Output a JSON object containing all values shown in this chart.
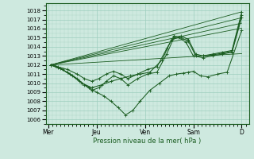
{
  "xlabel": "Pression niveau de la mer( hPa )",
  "xtick_labels": [
    "Mer",
    "Jeu",
    "Ven",
    "Sam",
    "D"
  ],
  "xtick_pos": [
    0,
    1,
    2,
    3,
    4
  ],
  "ylim": [
    1005.5,
    1018.8
  ],
  "ytick_vals": [
    1006,
    1007,
    1008,
    1009,
    1010,
    1011,
    1012,
    1013,
    1014,
    1015,
    1016,
    1017,
    1018
  ],
  "bg_color": "#cee9df",
  "grid_color": "#9ecfbe",
  "line_color": "#1a5c20",
  "straight_lines": [
    [
      0.05,
      1012.0,
      4.0,
      1017.85
    ],
    [
      0.05,
      1012.0,
      4.0,
      1017.2
    ],
    [
      0.05,
      1012.0,
      4.0,
      1016.6
    ],
    [
      0.05,
      1012.0,
      4.0,
      1016.05
    ],
    [
      0.05,
      1012.0,
      4.0,
      1013.25
    ]
  ],
  "curve1_x": [
    0.05,
    0.25,
    0.45,
    0.65,
    0.85,
    1.0,
    1.15,
    1.3,
    1.45,
    1.6,
    1.75,
    1.9,
    2.1,
    2.3,
    2.5,
    2.65,
    2.8,
    2.9,
    3.0,
    3.15,
    3.3,
    3.5,
    3.7,
    4.0
  ],
  "curve1_y": [
    1012.0,
    1011.6,
    1011.0,
    1010.2,
    1009.5,
    1009.0,
    1008.6,
    1008.0,
    1007.3,
    1006.5,
    1007.0,
    1008.0,
    1009.2,
    1010.0,
    1010.8,
    1011.0,
    1011.1,
    1011.2,
    1011.3,
    1010.8,
    1010.7,
    1011.0,
    1011.2,
    1015.8
  ],
  "curve2_x": [
    0.05,
    0.2,
    0.4,
    0.6,
    0.75,
    0.9,
    1.05,
    1.2,
    1.35,
    1.5,
    1.65,
    1.85,
    2.05,
    2.25,
    2.45,
    2.6,
    2.75,
    2.9,
    3.05,
    3.2,
    3.4,
    3.6,
    3.8,
    4.0
  ],
  "curve2_y": [
    1012.0,
    1011.7,
    1011.2,
    1010.5,
    1009.8,
    1009.2,
    1009.5,
    1010.2,
    1010.8,
    1010.5,
    1009.8,
    1010.5,
    1011.0,
    1011.2,
    1013.2,
    1015.0,
    1015.2,
    1014.8,
    1013.2,
    1013.0,
    1013.1,
    1013.3,
    1013.5,
    1017.5
  ],
  "curve3_x": [
    0.05,
    0.2,
    0.4,
    0.6,
    0.75,
    0.9,
    1.05,
    1.2,
    1.35,
    1.5,
    1.65,
    1.85,
    2.05,
    2.25,
    2.45,
    2.6,
    2.75,
    2.9,
    3.05,
    3.2,
    3.4,
    3.6,
    3.8,
    4.0
  ],
  "curve3_y": [
    1012.0,
    1011.8,
    1011.5,
    1011.0,
    1010.5,
    1010.2,
    1010.5,
    1011.0,
    1011.3,
    1011.0,
    1010.5,
    1011.0,
    1011.5,
    1011.8,
    1013.8,
    1015.2,
    1015.0,
    1014.6,
    1013.0,
    1013.0,
    1013.2,
    1013.4,
    1013.6,
    1017.8
  ],
  "curve4_x": [
    0.05,
    0.15,
    0.3,
    0.5,
    0.7,
    0.9,
    1.1,
    1.3,
    1.5,
    1.7,
    1.9,
    2.1,
    2.35,
    2.55,
    2.7,
    2.85,
    3.0,
    3.2,
    3.4,
    3.6,
    3.8,
    4.0
  ],
  "curve4_y": [
    1012.0,
    1011.9,
    1011.5,
    1010.8,
    1010.0,
    1009.5,
    1009.8,
    1010.2,
    1010.5,
    1010.8,
    1011.0,
    1011.2,
    1012.5,
    1014.8,
    1015.0,
    1014.5,
    1013.0,
    1012.8,
    1013.0,
    1013.2,
    1013.4,
    1017.2
  ]
}
